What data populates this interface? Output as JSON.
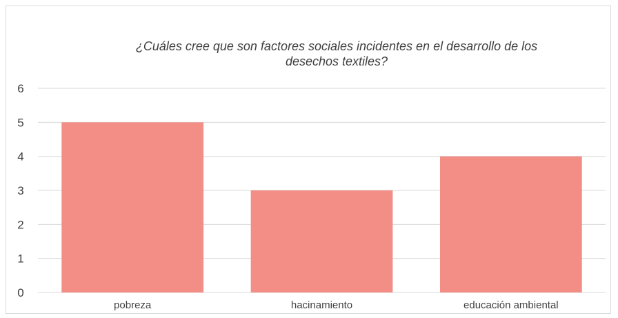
{
  "chart_data": {
    "type": "bar",
    "title_lines": [
      "¿Cuáles cree que son factores sociales incidentes en el desarrollo de los",
      "desechos textiles?"
    ],
    "categories": [
      "pobreza",
      "hacinamiento",
      "educación ambiental"
    ],
    "values": [
      5,
      3,
      4
    ],
    "ylim": [
      0,
      6
    ],
    "yticks": [
      "0",
      "1",
      "2",
      "3",
      "4",
      "5",
      "6"
    ],
    "grid": true,
    "legend": "none",
    "bar_color": "#f28e86",
    "grid_color": "#d9d9d9",
    "text_color": "#404040"
  }
}
